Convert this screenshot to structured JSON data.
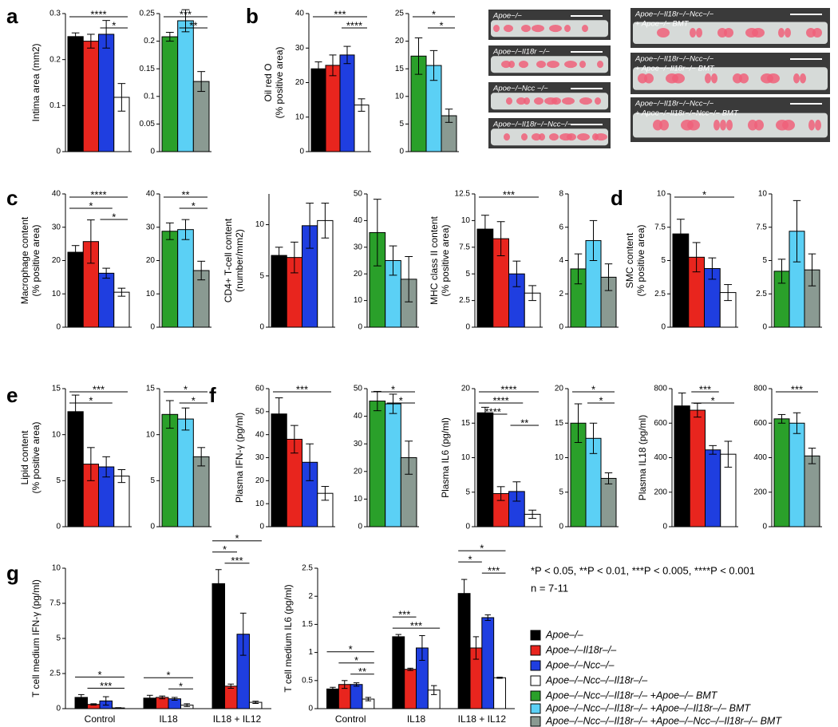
{
  "chart_data": [
    {
      "type": "bar",
      "panel": "a",
      "ylabel": [
        "Intima area (mm2)"
      ],
      "colors": [
        "#000000",
        "#e8251e",
        "#1f3ee0",
        "#ffffff"
      ],
      "values": [
        0.25,
        0.24,
        0.255,
        0.118
      ],
      "errors": [
        0.008,
        0.015,
        0.03,
        0.03
      ],
      "ylim": [
        0,
        0.3
      ],
      "yticks": [
        0,
        0.1,
        0.2,
        0.3
      ],
      "significance": [
        {
          "label": "****",
          "bars": [
            0,
            3
          ]
        },
        {
          "label": "*",
          "bars": [
            2,
            3
          ]
        }
      ]
    },
    {
      "type": "bar",
      "colors": [
        "#2aa02a",
        "#5bd0f5",
        "#8a9a92"
      ],
      "values": [
        0.208,
        0.237,
        0.127
      ],
      "errors": [
        0.008,
        0.02,
        0.018
      ],
      "ylim": [
        0,
        0.25
      ],
      "yticks": [
        0,
        0.05,
        0.1,
        0.15,
        0.2,
        0.25
      ],
      "significance": [
        {
          "label": "***",
          "bars": [
            0,
            2
          ]
        },
        {
          "label": "**",
          "bars": [
            1,
            2
          ]
        }
      ]
    },
    {
      "type": "bar",
      "panel": "b",
      "ylabel": [
        "Oil red O",
        "(% positive area)"
      ],
      "colors": [
        "#000000",
        "#e8251e",
        "#1f3ee0",
        "#ffffff"
      ],
      "values": [
        24,
        25,
        28,
        13.5
      ],
      "errors": [
        2,
        3,
        2.5,
        1.8
      ],
      "ylim": [
        0,
        40
      ],
      "yticks": [
        0,
        10,
        20,
        30,
        40
      ],
      "significance": [
        {
          "label": "***",
          "bars": [
            0,
            3
          ]
        },
        {
          "label": "****",
          "bars": [
            2,
            3
          ]
        }
      ]
    },
    {
      "type": "bar",
      "colors": [
        "#2aa02a",
        "#5bd0f5",
        "#8a9a92"
      ],
      "values": [
        17.3,
        15.6,
        6.5
      ],
      "errors": [
        3.3,
        2.7,
        1.2
      ],
      "ylim": [
        0,
        25
      ],
      "yticks": [
        0,
        5,
        10,
        15,
        20,
        25
      ],
      "significance": [
        {
          "label": "*",
          "bars": [
            0,
            2
          ]
        },
        {
          "label": "*",
          "bars": [
            1,
            2
          ]
        }
      ]
    },
    {
      "type": "bar",
      "panel": "c",
      "ylabel": [
        "Macrophage content",
        "(% positive area)"
      ],
      "colors": [
        "#000000",
        "#e8251e",
        "#1f3ee0",
        "#ffffff"
      ],
      "values": [
        22.5,
        25.7,
        16.2,
        10.5
      ],
      "errors": [
        2,
        6.5,
        1.5,
        1.2
      ],
      "ylim": [
        0,
        40
      ],
      "yticks": [
        0,
        10,
        20,
        30,
        40
      ],
      "significance": [
        {
          "label": "****",
          "bars": [
            0,
            3
          ]
        },
        {
          "label": "*",
          "bars": [
            0,
            2
          ]
        },
        {
          "label": "*",
          "bars": [
            2,
            3
          ]
        }
      ]
    },
    {
      "type": "bar",
      "colors": [
        "#2aa02a",
        "#5bd0f5",
        "#8a9a92"
      ],
      "values": [
        28.8,
        29.3,
        17
      ],
      "errors": [
        2.5,
        3,
        2.8
      ],
      "ylim": [
        0,
        40
      ],
      "yticks": [
        0,
        10,
        20,
        30,
        40
      ],
      "significance": [
        {
          "label": "**",
          "bars": [
            0,
            2
          ]
        },
        {
          "label": "*",
          "bars": [
            1,
            2
          ]
        }
      ]
    },
    {
      "type": "bar",
      "ylabel": [
        "CD4+ T-cell content",
        "(number/mm2)"
      ],
      "colors": [
        "#000000",
        "#e8251e",
        "#1f3ee0",
        "#ffffff"
      ],
      "values": [
        7,
        6.8,
        9.9,
        10.4
      ],
      "errors": [
        0.8,
        1.5,
        2.2,
        1.7
      ],
      "ylim": [
        0,
        13
      ],
      "yticks": [
        0,
        5,
        10
      ],
      "significance": []
    },
    {
      "type": "bar",
      "colors": [
        "#2aa02a",
        "#5bd0f5",
        "#8a9a92"
      ],
      "values": [
        35.5,
        25,
        18
      ],
      "errors": [
        12.5,
        5.5,
        8.5
      ],
      "ylim": [
        0,
        50
      ],
      "yticks": [
        0,
        10,
        20,
        30,
        40,
        50
      ],
      "significance": []
    },
    {
      "type": "bar",
      "ylabel": [
        "MHC class II content",
        "(% positive area)"
      ],
      "colors": [
        "#000000",
        "#e8251e",
        "#1f3ee0",
        "#ffffff"
      ],
      "values": [
        9.2,
        8.3,
        5,
        3.2
      ],
      "errors": [
        1.3,
        1.6,
        1.2,
        0.7
      ],
      "ylim": [
        0,
        12.5
      ],
      "yticks": [
        0,
        2.5,
        5,
        7.5,
        10,
        12.5
      ],
      "significance": [
        {
          "label": "***",
          "bars": [
            0,
            3
          ]
        }
      ]
    },
    {
      "type": "bar",
      "colors": [
        "#2aa02a",
        "#5bd0f5",
        "#8a9a92"
      ],
      "values": [
        3.5,
        5.2,
        3
      ],
      "errors": [
        0.9,
        1.2,
        0.8
      ],
      "ylim": [
        0,
        8
      ],
      "yticks": [
        0,
        2,
        4,
        6,
        8
      ],
      "significance": []
    },
    {
      "type": "bar",
      "panel": "d",
      "ylabel": [
        "SMC content",
        "(% positive area)"
      ],
      "colors": [
        "#000000",
        "#e8251e",
        "#1f3ee0",
        "#ffffff"
      ],
      "values": [
        7,
        5.25,
        4.4,
        2.6
      ],
      "errors": [
        1.1,
        1.1,
        0.8,
        0.6
      ],
      "ylim": [
        0,
        10
      ],
      "yticks": [
        0,
        2.5,
        5,
        7.5,
        10
      ],
      "significance": [
        {
          "label": "*",
          "bars": [
            0,
            3
          ]
        }
      ]
    },
    {
      "type": "bar",
      "colors": [
        "#2aa02a",
        "#5bd0f5",
        "#8a9a92"
      ],
      "values": [
        4.2,
        7.2,
        4.3
      ],
      "errors": [
        0.9,
        2.3,
        1.2
      ],
      "ylim": [
        0,
        10
      ],
      "yticks": [
        0,
        2.5,
        5,
        7.5,
        10
      ],
      "significance": []
    },
    {
      "type": "bar",
      "panel": "e",
      "ylabel": [
        "Lipid content",
        "(% positive area)"
      ],
      "colors": [
        "#000000",
        "#e8251e",
        "#1f3ee0",
        "#ffffff"
      ],
      "values": [
        12.5,
        6.8,
        6.5,
        5.5
      ],
      "errors": [
        1.8,
        1.8,
        1.1,
        0.7
      ],
      "ylim": [
        0,
        15
      ],
      "yticks": [
        0,
        5,
        10,
        15
      ],
      "significance": [
        {
          "label": "***",
          "bars": [
            0,
            3
          ]
        },
        {
          "label": "*",
          "bars": [
            0,
            2
          ]
        }
      ]
    },
    {
      "type": "bar",
      "colors": [
        "#2aa02a",
        "#5bd0f5",
        "#8a9a92"
      ],
      "values": [
        12.2,
        11.7,
        7.6
      ],
      "errors": [
        1.5,
        1.2,
        1
      ],
      "ylim": [
        0,
        15
      ],
      "yticks": [
        0,
        5,
        10,
        15
      ],
      "significance": [
        {
          "label": "*",
          "bars": [
            0,
            2
          ]
        },
        {
          "label": "*",
          "bars": [
            1,
            2
          ]
        }
      ]
    },
    {
      "type": "bar",
      "panel": "f",
      "ylabel": [
        "Plasma IFN-γ (pg/ml)"
      ],
      "colors": [
        "#000000",
        "#e8251e",
        "#1f3ee0",
        "#ffffff"
      ],
      "values": [
        49,
        38,
        28,
        14.5
      ],
      "errors": [
        7,
        6,
        8,
        3
      ],
      "ylim": [
        0,
        60
      ],
      "yticks": [
        0,
        10,
        20,
        30,
        40,
        50,
        60
      ],
      "significance": [
        {
          "label": "***",
          "bars": [
            0,
            3
          ]
        }
      ]
    },
    {
      "type": "bar",
      "colors": [
        "#2aa02a",
        "#5bd0f5",
        "#8a9a92"
      ],
      "values": [
        45.5,
        44.5,
        25
      ],
      "errors": [
        3.5,
        3.5,
        6
      ],
      "ylim": [
        0,
        50
      ],
      "yticks": [
        0,
        10,
        20,
        30,
        40,
        50
      ],
      "significance": [
        {
          "label": "*",
          "bars": [
            0,
            2
          ]
        },
        {
          "label": "*",
          "bars": [
            1,
            2
          ]
        }
      ]
    },
    {
      "type": "bar",
      "ylabel": [
        "Plasma IL6 (pg/ml)"
      ],
      "colors": [
        "#000000",
        "#e8251e",
        "#1f3ee0",
        "#ffffff"
      ],
      "values": [
        16.5,
        4.8,
        5.1,
        1.8
      ],
      "errors": [
        0.8,
        1,
        1.4,
        0.6
      ],
      "ylim": [
        0,
        20
      ],
      "yticks": [
        0,
        5,
        10,
        15,
        20
      ],
      "significance": [
        {
          "label": "****",
          "bars": [
            0,
            3
          ]
        },
        {
          "label": "****",
          "bars": [
            0,
            2
          ]
        },
        {
          "label": "****",
          "bars": [
            0,
            1
          ]
        },
        {
          "label": "**",
          "bars": [
            2,
            3
          ]
        }
      ]
    },
    {
      "type": "bar",
      "colors": [
        "#2aa02a",
        "#5bd0f5",
        "#8a9a92"
      ],
      "values": [
        15,
        12.8,
        7
      ],
      "errors": [
        2.8,
        2.2,
        0.8
      ],
      "ylim": [
        0,
        20
      ],
      "yticks": [
        0,
        5,
        10,
        15,
        20
      ],
      "significance": [
        {
          "label": "*",
          "bars": [
            0,
            2
          ]
        },
        {
          "label": "*",
          "bars": [
            1,
            2
          ]
        }
      ]
    },
    {
      "type": "bar",
      "ylabel": [
        "Plasma IL18 (pg/ml)"
      ],
      "colors": [
        "#000000",
        "#e8251e",
        "#1f3ee0",
        "#ffffff"
      ],
      "values": [
        700,
        675,
        445,
        420
      ],
      "errors": [
        75,
        40,
        25,
        75
      ],
      "ylim": [
        0,
        800
      ],
      "yticks": [
        0,
        200,
        400,
        600,
        800
      ],
      "significance": [
        {
          "label": "***",
          "bars": [
            1,
            2
          ]
        },
        {
          "label": "*",
          "bars": [
            1,
            3
          ]
        }
      ]
    },
    {
      "type": "bar",
      "colors": [
        "#2aa02a",
        "#5bd0f5",
        "#8a9a92"
      ],
      "values": [
        625,
        600,
        410
      ],
      "errors": [
        25,
        60,
        45
      ],
      "ylim": [
        0,
        800
      ],
      "yticks": [
        0,
        200,
        400,
        600,
        800
      ],
      "significance": [
        {
          "label": "***",
          "bars": [
            0,
            2
          ]
        }
      ]
    },
    {
      "type": "grouped-bar",
      "panel": "g",
      "ylabel": [
        "T cell medium IFN-γ (pg/ml)"
      ],
      "categories": [
        "Control",
        "IL18",
        "IL18 + IL12"
      ],
      "series": [
        {
          "color": "#000000",
          "values": [
            0.8,
            0.75,
            8.9
          ],
          "errors": [
            0.2,
            0.2,
            1
          ]
        },
        {
          "color": "#e8251e",
          "values": [
            0.3,
            0.8,
            1.6
          ],
          "errors": [
            0.05,
            0.1,
            0.15
          ]
        },
        {
          "color": "#1f3ee0",
          "values": [
            0.55,
            0.7,
            5.3
          ],
          "errors": [
            0.3,
            0.1,
            1.5
          ]
        },
        {
          "color": "#ffffff",
          "values": [
            0.05,
            0.25,
            0.45
          ],
          "errors": [
            0.02,
            0.1,
            0.08
          ]
        }
      ],
      "ylim": [
        0,
        10
      ],
      "yticks": [
        0,
        2.5,
        5,
        7.5,
        10
      ],
      "significance": [
        {
          "label": "*",
          "group": 0,
          "bars": [
            0,
            3
          ]
        },
        {
          "label": "***",
          "group": 0,
          "bars": [
            1,
            3
          ]
        },
        {
          "label": "*",
          "group": 1,
          "bars": [
            0,
            3
          ]
        },
        {
          "label": "*",
          "group": 1,
          "bars": [
            2,
            3
          ]
        },
        {
          "label": "*",
          "group": 2,
          "bars": [
            0,
            3
          ]
        },
        {
          "label": "*",
          "group": 2,
          "bars": [
            0,
            1
          ]
        },
        {
          "label": "***",
          "group": 2,
          "bars": [
            1,
            2
          ]
        }
      ]
    },
    {
      "type": "grouped-bar",
      "ylabel": [
        "T cell medium IL6 (pg/ml)"
      ],
      "categories": [
        "Control",
        "IL18",
        "IL18 + IL12"
      ],
      "series": [
        {
          "color": "#000000",
          "values": [
            0.35,
            1.28,
            2.05
          ],
          "errors": [
            0.03,
            0.04,
            0.25
          ]
        },
        {
          "color": "#e8251e",
          "values": [
            0.43,
            0.7,
            1.08
          ],
          "errors": [
            0.07,
            0.02,
            0.2
          ]
        },
        {
          "color": "#1f3ee0",
          "values": [
            0.43,
            1.08,
            1.62
          ],
          "errors": [
            0.03,
            0.22,
            0.05
          ]
        },
        {
          "color": "#ffffff",
          "values": [
            0.17,
            0.33,
            0.55
          ],
          "errors": [
            0.03,
            0.08,
            0.01
          ]
        }
      ],
      "ylim": [
        0,
        2.5
      ],
      "yticks": [
        0,
        0.5,
        1,
        1.5,
        2,
        2.5
      ],
      "significance": [
        {
          "label": "*",
          "group": 0,
          "bars": [
            0,
            3
          ]
        },
        {
          "label": "*",
          "group": 0,
          "bars": [
            1,
            3
          ]
        },
        {
          "label": "**",
          "group": 0,
          "bars": [
            2,
            3
          ]
        },
        {
          "label": "***",
          "group": 1,
          "bars": [
            0,
            1
          ]
        },
        {
          "label": "***",
          "group": 1,
          "bars": [
            0,
            3
          ]
        },
        {
          "label": "*",
          "group": 2,
          "bars": [
            0,
            3
          ]
        },
        {
          "label": "*",
          "group": 2,
          "bars": [
            0,
            1
          ]
        },
        {
          "label": "***",
          "group": 2,
          "bars": [
            2,
            3
          ]
        }
      ]
    }
  ],
  "photos": [
    [
      "Apoe−/−"
    ],
    [
      "Apoe−/−Il18r −/−"
    ],
    [
      "Apoe−/−Ncc −/−"
    ],
    [
      "Apoe−/−Il18r−/−Ncc−/−"
    ],
    [
      "Apoe−/−Il18r−/−Ncc−/−",
      "+ Apoe−/− BMT"
    ],
    [
      "Apoe−/−Il18r−/−Ncc−/−",
      "+ Apoe−/−Il18r−/− BMT"
    ],
    [
      "Apoe−/−Il18r−/−Ncc−/−",
      "+ Apoe−/−Il18r−/−Ncc−/− BMT"
    ]
  ],
  "footnote": [
    "*P < 0.05, **P < 0.01, ***P < 0.005, ****P < 0.001",
    "n = 7-11"
  ],
  "legend": [
    {
      "name": "Apoe–/–",
      "color": "#000000"
    },
    {
      "name": "Apoe–/–Il18r–/–",
      "color": "#e8251e"
    },
    {
      "name": "Apoe–/–Ncc–/–",
      "color": "#1f3ee0"
    },
    {
      "name": "Apoe–/–Ncc–/–Il18r–/–",
      "color": "#ffffff"
    },
    {
      "name": "Apoe–/–Ncc–/–Il18r–/– +Apoe–/– BMT",
      "color": "#2aa02a"
    },
    {
      "name": "Apoe–/–Ncc–/–Il18r–/– +Apoe–/–Il18r–/– BMT",
      "color": "#5bd0f5"
    },
    {
      "name": "Apoe–/–Ncc–/–Il18r–/– +Apoe–/–Ncc–/–Il18r–/– BMT",
      "color": "#8a9a92"
    }
  ]
}
